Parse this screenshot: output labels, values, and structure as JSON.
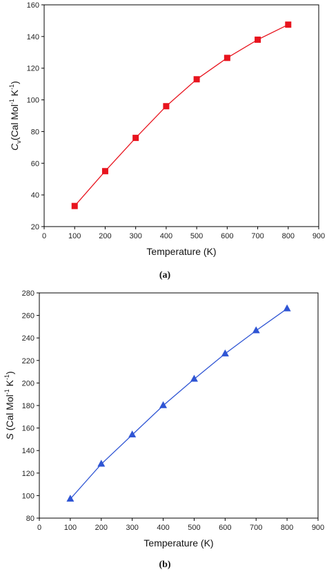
{
  "chart_data": [
    {
      "type": "line",
      "panel_label": "(a)",
      "xlabel": "Temperature (K)",
      "ylabel": {
        "main": "C",
        "sub": "v",
        "open": "(Cal Mol",
        "sup1": "-1",
        "mid": " K",
        "sup2": "-1",
        "close": ")"
      },
      "x": [
        100,
        200,
        300,
        400,
        500,
        600,
        700,
        800
      ],
      "series": [
        {
          "values": [
            33,
            55,
            76,
            96,
            113,
            126.5,
            138,
            147.5
          ]
        }
      ],
      "xlim": [
        0,
        900
      ],
      "ylim": [
        20,
        160
      ],
      "xticks": [
        0,
        100,
        200,
        300,
        400,
        500,
        600,
        700,
        800,
        900
      ],
      "yticks": [
        20,
        40,
        60,
        80,
        100,
        120,
        140,
        160
      ],
      "marker": "square",
      "color": "#e8141e",
      "grid": false
    },
    {
      "type": "line",
      "panel_label": "(b)",
      "xlabel": "Temperature (K)",
      "ylabel": {
        "main": "S",
        "sub": "",
        "open": " (Cal Mol",
        "sup1": "-1",
        "mid": " K",
        "sup2": "-1",
        "close": ")"
      },
      "x": [
        100,
        200,
        300,
        400,
        500,
        600,
        700,
        800
      ],
      "series": [
        {
          "values": [
            97,
            128,
            154,
            180,
            203.5,
            226,
            246.5,
            266
          ]
        }
      ],
      "xlim": [
        0,
        900
      ],
      "ylim": [
        80,
        280
      ],
      "xticks": [
        0,
        100,
        200,
        300,
        400,
        500,
        600,
        700,
        800,
        900
      ],
      "yticks": [
        80,
        100,
        120,
        140,
        160,
        180,
        200,
        220,
        240,
        260,
        280
      ],
      "marker": "triangle",
      "color": "#2f55d4",
      "grid": false
    }
  ]
}
